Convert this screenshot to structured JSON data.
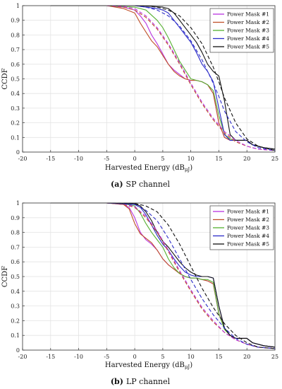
{
  "chart_data": [
    {
      "type": "line",
      "caption_label": "(a)",
      "caption_text": "SP channel",
      "xlabel": "Harvested Energy (dB",
      "xlabel_sub": "μJ",
      "xlabel_close": ")",
      "ylabel": "CCDF",
      "xlim": [
        -20,
        25
      ],
      "ylim": [
        0,
        1
      ],
      "xticks": [
        "-20",
        "-15",
        "-10",
        "-5",
        "0",
        "5",
        "10",
        "15",
        "20",
        "25"
      ],
      "yticks": [
        "0",
        "0.1",
        "0.2",
        "0.3",
        "0.4",
        "0.5",
        "0.6",
        "0.7",
        "0.8",
        "0.9",
        "1"
      ],
      "grid": true,
      "legend_position": "top-right",
      "legend": [
        "Power Mask #1",
        "Power Mask #2",
        "Power Mask #3",
        "Power Mask #4",
        "Power Mask #5"
      ],
      "series": [
        {
          "name": "Power Mask #1",
          "color": "#b833e0",
          "style": "solid",
          "x": [
            -15,
            -5,
            -2,
            0,
            1,
            2,
            3,
            4,
            5,
            6,
            7,
            8,
            9,
            10,
            11,
            12,
            13,
            14,
            15,
            16,
            17,
            18,
            20,
            21,
            23,
            25
          ],
          "y": [
            1,
            1,
            0.99,
            0.97,
            0.93,
            0.88,
            0.8,
            0.74,
            0.67,
            0.6,
            0.56,
            0.53,
            0.5,
            0.49,
            0.49,
            0.48,
            0.46,
            0.4,
            0.2,
            0.1,
            0.08,
            0.08,
            0.08,
            0.05,
            0.03,
            0.02
          ]
        },
        {
          "name": "Power Mask #2",
          "color": "#c0502a",
          "style": "solid",
          "x": [
            -15,
            -5,
            -2,
            0,
            1,
            2,
            3,
            4,
            5,
            6,
            7,
            8,
            9,
            10,
            11,
            12,
            13,
            14,
            15,
            16,
            17,
            18,
            20,
            21,
            23,
            25
          ],
          "y": [
            1,
            1,
            0.98,
            0.95,
            0.88,
            0.82,
            0.76,
            0.72,
            0.66,
            0.6,
            0.55,
            0.52,
            0.5,
            0.49,
            0.49,
            0.48,
            0.46,
            0.4,
            0.2,
            0.1,
            0.08,
            0.08,
            0.08,
            0.05,
            0.03,
            0.02
          ]
        },
        {
          "name": "Power Mask #3",
          "color": "#55b030",
          "style": "solid",
          "x": [
            -15,
            -5,
            0,
            2,
            4,
            5,
            6,
            7,
            8,
            9,
            10,
            11,
            12,
            13,
            14,
            15,
            16,
            17,
            18,
            20,
            21,
            23,
            25
          ],
          "y": [
            1,
            1,
            0.99,
            0.97,
            0.9,
            0.85,
            0.78,
            0.7,
            0.62,
            0.56,
            0.5,
            0.49,
            0.48,
            0.46,
            0.42,
            0.25,
            0.12,
            0.09,
            0.08,
            0.08,
            0.05,
            0.03,
            0.02
          ]
        },
        {
          "name": "Power Mask #4",
          "color": "#2b2bc8",
          "style": "solid",
          "x": [
            -15,
            0,
            2,
            4,
            5,
            6,
            7,
            8,
            9,
            10,
            11,
            12,
            13,
            14,
            15,
            16,
            17,
            18,
            20,
            21,
            23,
            25
          ],
          "y": [
            1,
            1,
            0.99,
            0.98,
            0.97,
            0.95,
            0.9,
            0.85,
            0.8,
            0.75,
            0.68,
            0.6,
            0.55,
            0.48,
            0.3,
            0.12,
            0.08,
            0.08,
            0.08,
            0.05,
            0.03,
            0.02
          ]
        },
        {
          "name": "Power Mask #5",
          "color": "#111111",
          "style": "solid",
          "x": [
            -15,
            0,
            3,
            5,
            6,
            7,
            8,
            9,
            10,
            11,
            12,
            13,
            14,
            15,
            16,
            17,
            18,
            20,
            21,
            23,
            25
          ],
          "y": [
            1,
            1,
            0.995,
            0.99,
            0.98,
            0.95,
            0.9,
            0.85,
            0.8,
            0.75,
            0.68,
            0.6,
            0.55,
            0.52,
            0.35,
            0.12,
            0.08,
            0.08,
            0.05,
            0.03,
            0.02
          ]
        },
        {
          "name": "",
          "color": "#c0502a",
          "style": "dashed",
          "x": [
            -5,
            -2,
            0,
            2,
            4,
            6,
            8,
            10,
            12,
            14,
            16,
            18,
            20,
            22,
            25
          ],
          "y": [
            1,
            0.99,
            0.97,
            0.92,
            0.84,
            0.73,
            0.6,
            0.46,
            0.33,
            0.22,
            0.13,
            0.07,
            0.04,
            0.02,
            0.01
          ]
        },
        {
          "name": "",
          "color": "#b833e0",
          "style": "dashed",
          "x": [
            -5,
            -2,
            0,
            2,
            4,
            6,
            8,
            10,
            12,
            14,
            16,
            18,
            20,
            22,
            25
          ],
          "y": [
            1,
            0.995,
            0.98,
            0.93,
            0.85,
            0.74,
            0.61,
            0.47,
            0.34,
            0.23,
            0.14,
            0.08,
            0.04,
            0.02,
            0.01
          ]
        },
        {
          "name": "",
          "color": "#2b2bc8",
          "style": "dashed",
          "x": [
            0,
            2,
            4,
            6,
            8,
            10,
            12,
            14,
            15,
            16,
            18,
            20,
            22,
            25
          ],
          "y": [
            1,
            0.99,
            0.97,
            0.93,
            0.86,
            0.76,
            0.63,
            0.47,
            0.38,
            0.28,
            0.14,
            0.07,
            0.03,
            0.01
          ]
        },
        {
          "name": "",
          "color": "#111111",
          "style": "dashed",
          "x": [
            0,
            2,
            4,
            6,
            8,
            10,
            12,
            14,
            15,
            16,
            18,
            20,
            22,
            25
          ],
          "y": [
            1,
            0.998,
            0.99,
            0.97,
            0.93,
            0.85,
            0.74,
            0.58,
            0.48,
            0.37,
            0.2,
            0.09,
            0.04,
            0.01
          ]
        }
      ]
    },
    {
      "type": "line",
      "caption_label": "(b)",
      "caption_text": "LP channel",
      "xlabel": "Harvested Energy (dB",
      "xlabel_sub": "μJ",
      "xlabel_close": ")",
      "ylabel": "CCDF",
      "xlim": [
        -20,
        25
      ],
      "ylim": [
        0,
        1
      ],
      "xticks": [
        "-20",
        "-15",
        "-10",
        "-5",
        "0",
        "5",
        "10",
        "15",
        "20",
        "25"
      ],
      "yticks": [
        "0",
        "0.1",
        "0.2",
        "0.3",
        "0.4",
        "0.5",
        "0.6",
        "0.7",
        "0.8",
        "0.9",
        "1"
      ],
      "grid": true,
      "legend_position": "top-right",
      "legend": [
        "Power Mask #1",
        "Power Mask #2",
        "Power Mask #3",
        "Power Mask #4",
        "Power Mask #5"
      ],
      "series": [
        {
          "name": "Power Mask #1",
          "color": "#b833e0",
          "style": "solid",
          "x": [
            -15,
            -5,
            -2,
            -1,
            0,
            1,
            2,
            3,
            4,
            5,
            6,
            7,
            8,
            9,
            10,
            11,
            12,
            13,
            14,
            15,
            16,
            17,
            18,
            20,
            21,
            23,
            25
          ],
          "y": [
            1,
            1,
            0.99,
            0.97,
            0.9,
            0.8,
            0.75,
            0.72,
            0.68,
            0.62,
            0.58,
            0.55,
            0.52,
            0.5,
            0.49,
            0.49,
            0.48,
            0.47,
            0.45,
            0.25,
            0.15,
            0.1,
            0.08,
            0.08,
            0.05,
            0.03,
            0.02
          ]
        },
        {
          "name": "Power Mask #2",
          "color": "#c0502a",
          "style": "solid",
          "x": [
            -15,
            -5,
            -2,
            -1,
            0,
            1,
            2,
            3,
            4,
            5,
            6,
            7,
            8,
            9,
            10,
            11,
            12,
            13,
            14,
            15,
            16,
            17,
            18,
            20,
            21,
            23,
            25
          ],
          "y": [
            1,
            1,
            0.99,
            0.96,
            0.86,
            0.79,
            0.76,
            0.73,
            0.68,
            0.62,
            0.58,
            0.55,
            0.52,
            0.5,
            0.49,
            0.49,
            0.48,
            0.47,
            0.45,
            0.25,
            0.15,
            0.1,
            0.08,
            0.08,
            0.05,
            0.03,
            0.02
          ]
        },
        {
          "name": "Power Mask #3",
          "color": "#55b030",
          "style": "solid",
          "x": [
            -15,
            -5,
            -2,
            0,
            1,
            2,
            3,
            4,
            5,
            6,
            7,
            8,
            9,
            10,
            11,
            12,
            13,
            14,
            15,
            16,
            17,
            18,
            20,
            21,
            23,
            25
          ],
          "y": [
            1,
            1,
            0.995,
            0.98,
            0.93,
            0.86,
            0.8,
            0.75,
            0.7,
            0.62,
            0.56,
            0.52,
            0.5,
            0.49,
            0.49,
            0.48,
            0.48,
            0.46,
            0.25,
            0.14,
            0.1,
            0.08,
            0.08,
            0.05,
            0.03,
            0.02
          ]
        },
        {
          "name": "Power Mask #4",
          "color": "#2b2bc8",
          "style": "solid",
          "x": [
            -15,
            -5,
            0,
            1,
            2,
            3,
            4,
            5,
            6,
            7,
            8,
            9,
            10,
            11,
            12,
            13,
            14,
            15,
            16,
            17,
            18,
            20,
            21,
            23,
            25
          ],
          "y": [
            1,
            1,
            0.99,
            0.97,
            0.92,
            0.85,
            0.78,
            0.72,
            0.68,
            0.62,
            0.57,
            0.53,
            0.51,
            0.5,
            0.5,
            0.5,
            0.49,
            0.3,
            0.15,
            0.1,
            0.08,
            0.08,
            0.05,
            0.03,
            0.02
          ]
        },
        {
          "name": "Power Mask #5",
          "color": "#111111",
          "style": "solid",
          "x": [
            -15,
            -5,
            0,
            1,
            2,
            3,
            4,
            5,
            6,
            7,
            8,
            9,
            10,
            11,
            12,
            13,
            14,
            15,
            16,
            17,
            18,
            20,
            21,
            23,
            25
          ],
          "y": [
            1,
            1,
            0.995,
            0.98,
            0.94,
            0.88,
            0.8,
            0.74,
            0.7,
            0.65,
            0.6,
            0.56,
            0.53,
            0.51,
            0.5,
            0.5,
            0.49,
            0.3,
            0.15,
            0.1,
            0.08,
            0.08,
            0.05,
            0.03,
            0.02
          ]
        },
        {
          "name": "",
          "color": "#c0502a",
          "style": "dashed",
          "x": [
            -5,
            -2,
            0,
            2,
            4,
            6,
            8,
            10,
            12,
            14,
            16,
            18,
            20,
            22,
            25
          ],
          "y": [
            1,
            0.99,
            0.97,
            0.9,
            0.8,
            0.67,
            0.53,
            0.4,
            0.28,
            0.19,
            0.12,
            0.07,
            0.04,
            0.02,
            0.01
          ]
        },
        {
          "name": "",
          "color": "#b833e0",
          "style": "dashed",
          "x": [
            -5,
            -2,
            0,
            2,
            4,
            6,
            8,
            10,
            12,
            14,
            16,
            18,
            20,
            22,
            25
          ],
          "y": [
            1,
            0.995,
            0.975,
            0.91,
            0.81,
            0.68,
            0.54,
            0.41,
            0.29,
            0.2,
            0.12,
            0.07,
            0.04,
            0.02,
            0.01
          ]
        },
        {
          "name": "",
          "color": "#2b2bc8",
          "style": "dashed",
          "x": [
            -5,
            0,
            2,
            4,
            6,
            8,
            10,
            12,
            14,
            16,
            18,
            20,
            22,
            25
          ],
          "y": [
            1,
            0.99,
            0.95,
            0.88,
            0.76,
            0.62,
            0.48,
            0.35,
            0.24,
            0.15,
            0.08,
            0.04,
            0.02,
            0.01
          ]
        },
        {
          "name": "",
          "color": "#111111",
          "style": "dashed",
          "x": [
            -5,
            0,
            2,
            4,
            6,
            8,
            10,
            12,
            14,
            16,
            18,
            20,
            22,
            25
          ],
          "y": [
            1,
            0.997,
            0.98,
            0.94,
            0.85,
            0.72,
            0.57,
            0.42,
            0.29,
            0.18,
            0.1,
            0.05,
            0.02,
            0.01
          ]
        }
      ]
    }
  ]
}
